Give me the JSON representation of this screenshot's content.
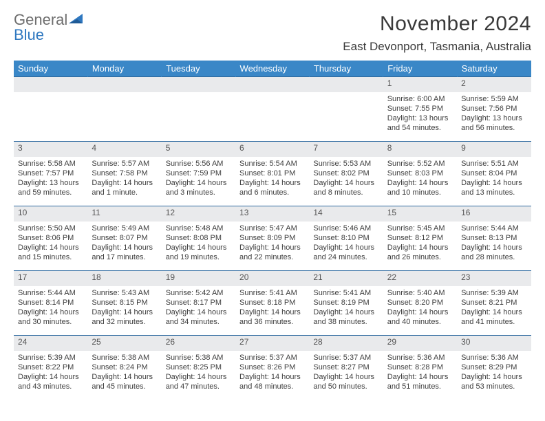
{
  "brand": {
    "part1": "General",
    "part2": "Blue"
  },
  "title": "November 2024",
  "location": "East Devonport, Tasmania, Australia",
  "colors": {
    "header_bg": "#3a87c7",
    "header_text": "#ffffff",
    "daynum_bg": "#e9eaec",
    "row_border": "#2f6aa0",
    "brand_blue": "#2f78c0",
    "brand_gray": "#6e6e6e",
    "text": "#3d3d3d"
  },
  "daynames": [
    "Sunday",
    "Monday",
    "Tuesday",
    "Wednesday",
    "Thursday",
    "Friday",
    "Saturday"
  ],
  "weeks": [
    {
      "nums": [
        "",
        "",
        "",
        "",
        "",
        "1",
        "2"
      ],
      "cells": [
        null,
        null,
        null,
        null,
        null,
        {
          "sunrise": "Sunrise: 6:00 AM",
          "sunset": "Sunset: 7:55 PM",
          "day1": "Daylight: 13 hours",
          "day2": "and 54 minutes."
        },
        {
          "sunrise": "Sunrise: 5:59 AM",
          "sunset": "Sunset: 7:56 PM",
          "day1": "Daylight: 13 hours",
          "day2": "and 56 minutes."
        }
      ]
    },
    {
      "nums": [
        "3",
        "4",
        "5",
        "6",
        "7",
        "8",
        "9"
      ],
      "cells": [
        {
          "sunrise": "Sunrise: 5:58 AM",
          "sunset": "Sunset: 7:57 PM",
          "day1": "Daylight: 13 hours",
          "day2": "and 59 minutes."
        },
        {
          "sunrise": "Sunrise: 5:57 AM",
          "sunset": "Sunset: 7:58 PM",
          "day1": "Daylight: 14 hours",
          "day2": "and 1 minute."
        },
        {
          "sunrise": "Sunrise: 5:56 AM",
          "sunset": "Sunset: 7:59 PM",
          "day1": "Daylight: 14 hours",
          "day2": "and 3 minutes."
        },
        {
          "sunrise": "Sunrise: 5:54 AM",
          "sunset": "Sunset: 8:01 PM",
          "day1": "Daylight: 14 hours",
          "day2": "and 6 minutes."
        },
        {
          "sunrise": "Sunrise: 5:53 AM",
          "sunset": "Sunset: 8:02 PM",
          "day1": "Daylight: 14 hours",
          "day2": "and 8 minutes."
        },
        {
          "sunrise": "Sunrise: 5:52 AM",
          "sunset": "Sunset: 8:03 PM",
          "day1": "Daylight: 14 hours",
          "day2": "and 10 minutes."
        },
        {
          "sunrise": "Sunrise: 5:51 AM",
          "sunset": "Sunset: 8:04 PM",
          "day1": "Daylight: 14 hours",
          "day2": "and 13 minutes."
        }
      ]
    },
    {
      "nums": [
        "10",
        "11",
        "12",
        "13",
        "14",
        "15",
        "16"
      ],
      "cells": [
        {
          "sunrise": "Sunrise: 5:50 AM",
          "sunset": "Sunset: 8:06 PM",
          "day1": "Daylight: 14 hours",
          "day2": "and 15 minutes."
        },
        {
          "sunrise": "Sunrise: 5:49 AM",
          "sunset": "Sunset: 8:07 PM",
          "day1": "Daylight: 14 hours",
          "day2": "and 17 minutes."
        },
        {
          "sunrise": "Sunrise: 5:48 AM",
          "sunset": "Sunset: 8:08 PM",
          "day1": "Daylight: 14 hours",
          "day2": "and 19 minutes."
        },
        {
          "sunrise": "Sunrise: 5:47 AM",
          "sunset": "Sunset: 8:09 PM",
          "day1": "Daylight: 14 hours",
          "day2": "and 22 minutes."
        },
        {
          "sunrise": "Sunrise: 5:46 AM",
          "sunset": "Sunset: 8:10 PM",
          "day1": "Daylight: 14 hours",
          "day2": "and 24 minutes."
        },
        {
          "sunrise": "Sunrise: 5:45 AM",
          "sunset": "Sunset: 8:12 PM",
          "day1": "Daylight: 14 hours",
          "day2": "and 26 minutes."
        },
        {
          "sunrise": "Sunrise: 5:44 AM",
          "sunset": "Sunset: 8:13 PM",
          "day1": "Daylight: 14 hours",
          "day2": "and 28 minutes."
        }
      ]
    },
    {
      "nums": [
        "17",
        "18",
        "19",
        "20",
        "21",
        "22",
        "23"
      ],
      "cells": [
        {
          "sunrise": "Sunrise: 5:44 AM",
          "sunset": "Sunset: 8:14 PM",
          "day1": "Daylight: 14 hours",
          "day2": "and 30 minutes."
        },
        {
          "sunrise": "Sunrise: 5:43 AM",
          "sunset": "Sunset: 8:15 PM",
          "day1": "Daylight: 14 hours",
          "day2": "and 32 minutes."
        },
        {
          "sunrise": "Sunrise: 5:42 AM",
          "sunset": "Sunset: 8:17 PM",
          "day1": "Daylight: 14 hours",
          "day2": "and 34 minutes."
        },
        {
          "sunrise": "Sunrise: 5:41 AM",
          "sunset": "Sunset: 8:18 PM",
          "day1": "Daylight: 14 hours",
          "day2": "and 36 minutes."
        },
        {
          "sunrise": "Sunrise: 5:41 AM",
          "sunset": "Sunset: 8:19 PM",
          "day1": "Daylight: 14 hours",
          "day2": "and 38 minutes."
        },
        {
          "sunrise": "Sunrise: 5:40 AM",
          "sunset": "Sunset: 8:20 PM",
          "day1": "Daylight: 14 hours",
          "day2": "and 40 minutes."
        },
        {
          "sunrise": "Sunrise: 5:39 AM",
          "sunset": "Sunset: 8:21 PM",
          "day1": "Daylight: 14 hours",
          "day2": "and 41 minutes."
        }
      ]
    },
    {
      "nums": [
        "24",
        "25",
        "26",
        "27",
        "28",
        "29",
        "30"
      ],
      "cells": [
        {
          "sunrise": "Sunrise: 5:39 AM",
          "sunset": "Sunset: 8:22 PM",
          "day1": "Daylight: 14 hours",
          "day2": "and 43 minutes."
        },
        {
          "sunrise": "Sunrise: 5:38 AM",
          "sunset": "Sunset: 8:24 PM",
          "day1": "Daylight: 14 hours",
          "day2": "and 45 minutes."
        },
        {
          "sunrise": "Sunrise: 5:38 AM",
          "sunset": "Sunset: 8:25 PM",
          "day1": "Daylight: 14 hours",
          "day2": "and 47 minutes."
        },
        {
          "sunrise": "Sunrise: 5:37 AM",
          "sunset": "Sunset: 8:26 PM",
          "day1": "Daylight: 14 hours",
          "day2": "and 48 minutes."
        },
        {
          "sunrise": "Sunrise: 5:37 AM",
          "sunset": "Sunset: 8:27 PM",
          "day1": "Daylight: 14 hours",
          "day2": "and 50 minutes."
        },
        {
          "sunrise": "Sunrise: 5:36 AM",
          "sunset": "Sunset: 8:28 PM",
          "day1": "Daylight: 14 hours",
          "day2": "and 51 minutes."
        },
        {
          "sunrise": "Sunrise: 5:36 AM",
          "sunset": "Sunset: 8:29 PM",
          "day1": "Daylight: 14 hours",
          "day2": "and 53 minutes."
        }
      ]
    }
  ]
}
